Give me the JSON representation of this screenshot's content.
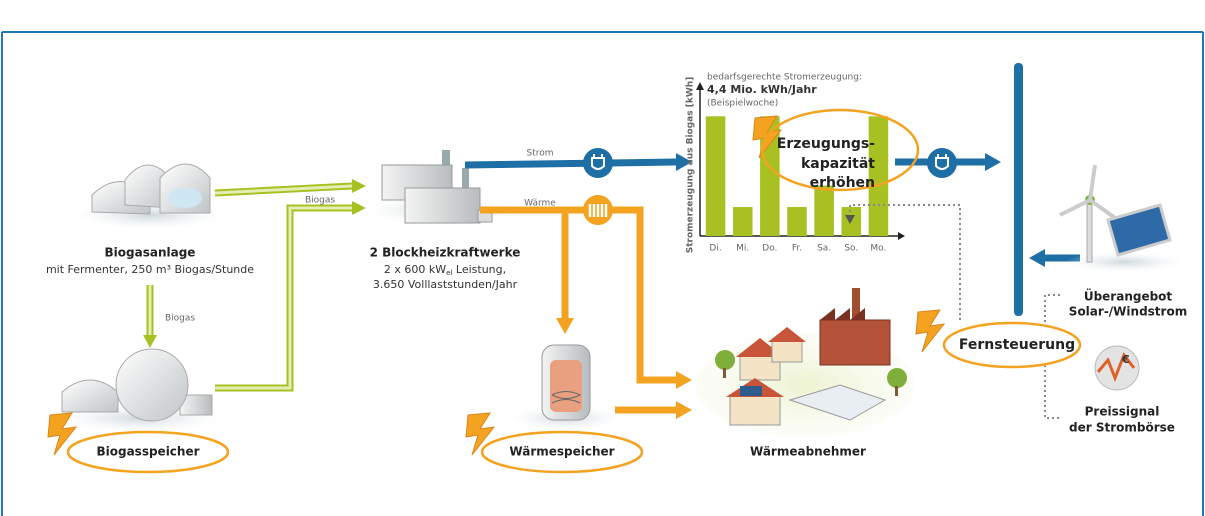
{
  "biogas_plant": {
    "title": "Biogasanlage",
    "subtitle": "mit Fermenter, 250 m³ Biogas/Stunde"
  },
  "flows": {
    "biogas_down": "Biogas",
    "biogas_right": "Biogas",
    "power": "Strom",
    "heat": "Wärme"
  },
  "biogas_storage": {
    "title": "Biogasspeicher"
  },
  "chp": {
    "title": "2 Blockheizkraftwerke",
    "capacity": {
      "text": "2 x 600 kW",
      "subscript": "el",
      "rest": " Leistung,"
    },
    "hours": "3.650 Volllaststunden/Jahr"
  },
  "heat_storage": {
    "title": "Wärmespeicher"
  },
  "heat_consumers": {
    "title": "Wärmeabnehmer"
  },
  "capacity_increase": {
    "lines": [
      "Erzeugungs-",
      "kapazität",
      "erhöhen"
    ]
  },
  "surplus": {
    "lines": [
      "Überangebot",
      "Solar-/Windstrom"
    ]
  },
  "remote_control": {
    "title": "Fernsteuerung"
  },
  "price_signal": {
    "lines": [
      "Preissignal",
      "der Strombörse"
    ]
  },
  "chart_data": {
    "type": "bar",
    "title": "bedarfsgerechte Stromerzeugung:",
    "subtitle": "4,4 Mio. kWh/Jahr",
    "note": "(Beispielwoche)",
    "y_label": "Stromerzeugung aus Biogas [kWh]",
    "categories": [
      "Di.",
      "Mi.",
      "Do.",
      "Fr.",
      "Sa.",
      "So.",
      "Mo."
    ],
    "values": [
      95,
      23,
      95,
      23,
      40,
      23,
      95
    ],
    "ylim": [
      0,
      100
    ],
    "color": "#a9c023"
  }
}
